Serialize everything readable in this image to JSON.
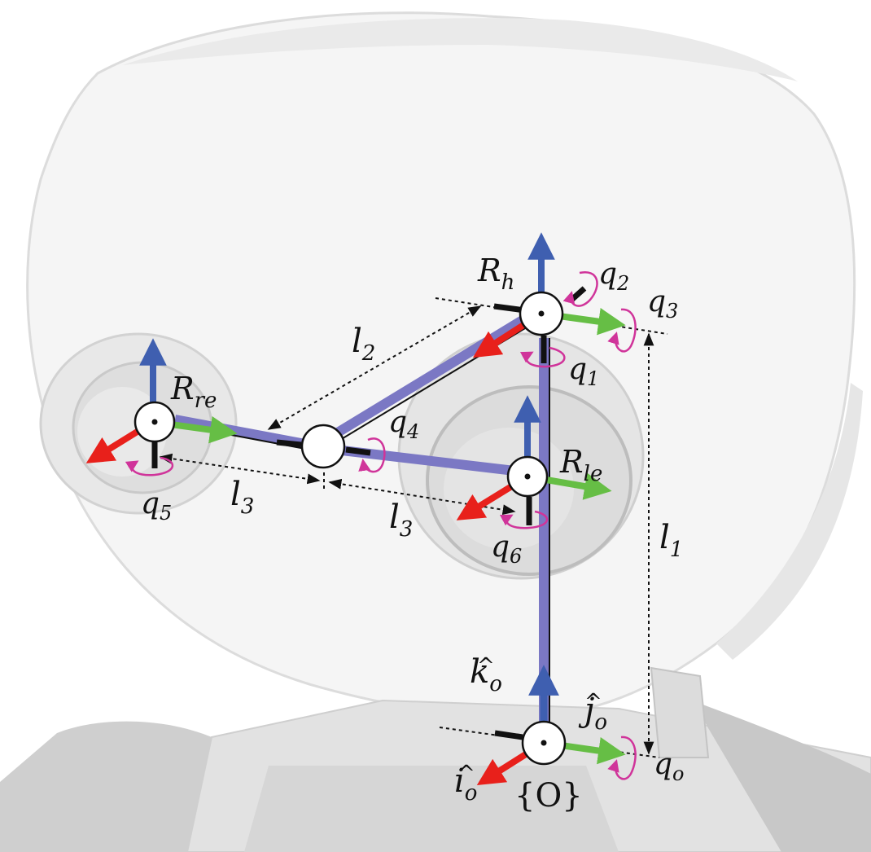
{
  "title": "Robot head kinematic chain diagram",
  "colors": {
    "link": "#7b78c4",
    "z_axis": "#3f5fb0",
    "x_axis": "#e8201b",
    "y_axis": "#66be45",
    "rotation": "#d0349a",
    "dim_line": "#111111",
    "background": "#ffffff",
    "face": "#f4f4f4",
    "face_shadow": "#d9d9d9"
  },
  "frames": {
    "head": {
      "name": "R",
      "sub": "h"
    },
    "right_eye": {
      "name": "R",
      "sub": "re"
    },
    "left_eye": {
      "name": "R",
      "sub": "le"
    },
    "origin": {
      "label": "{O}"
    }
  },
  "joints": {
    "q1": {
      "name": "q",
      "sub": "1"
    },
    "q2": {
      "name": "q",
      "sub": "2"
    },
    "q3": {
      "name": "q",
      "sub": "3"
    },
    "q4": {
      "name": "q",
      "sub": "4"
    },
    "q5": {
      "name": "q",
      "sub": "5"
    },
    "q6": {
      "name": "q",
      "sub": "6"
    },
    "qo": {
      "name": "q",
      "sub": "o"
    }
  },
  "lengths": {
    "l1": {
      "name": "l",
      "sub": "1"
    },
    "l2": {
      "name": "l",
      "sub": "2"
    },
    "l3_right": {
      "name": "l",
      "sub": "3"
    },
    "l3_left": {
      "name": "l",
      "sub": "3"
    }
  },
  "unit_vectors": {
    "k": {
      "name": "k",
      "hat": "^",
      "sub": "o"
    },
    "j": {
      "name": "j",
      "hat": "^",
      "sub": "o"
    },
    "i": {
      "name": "i",
      "hat": "^",
      "sub": "o"
    }
  }
}
